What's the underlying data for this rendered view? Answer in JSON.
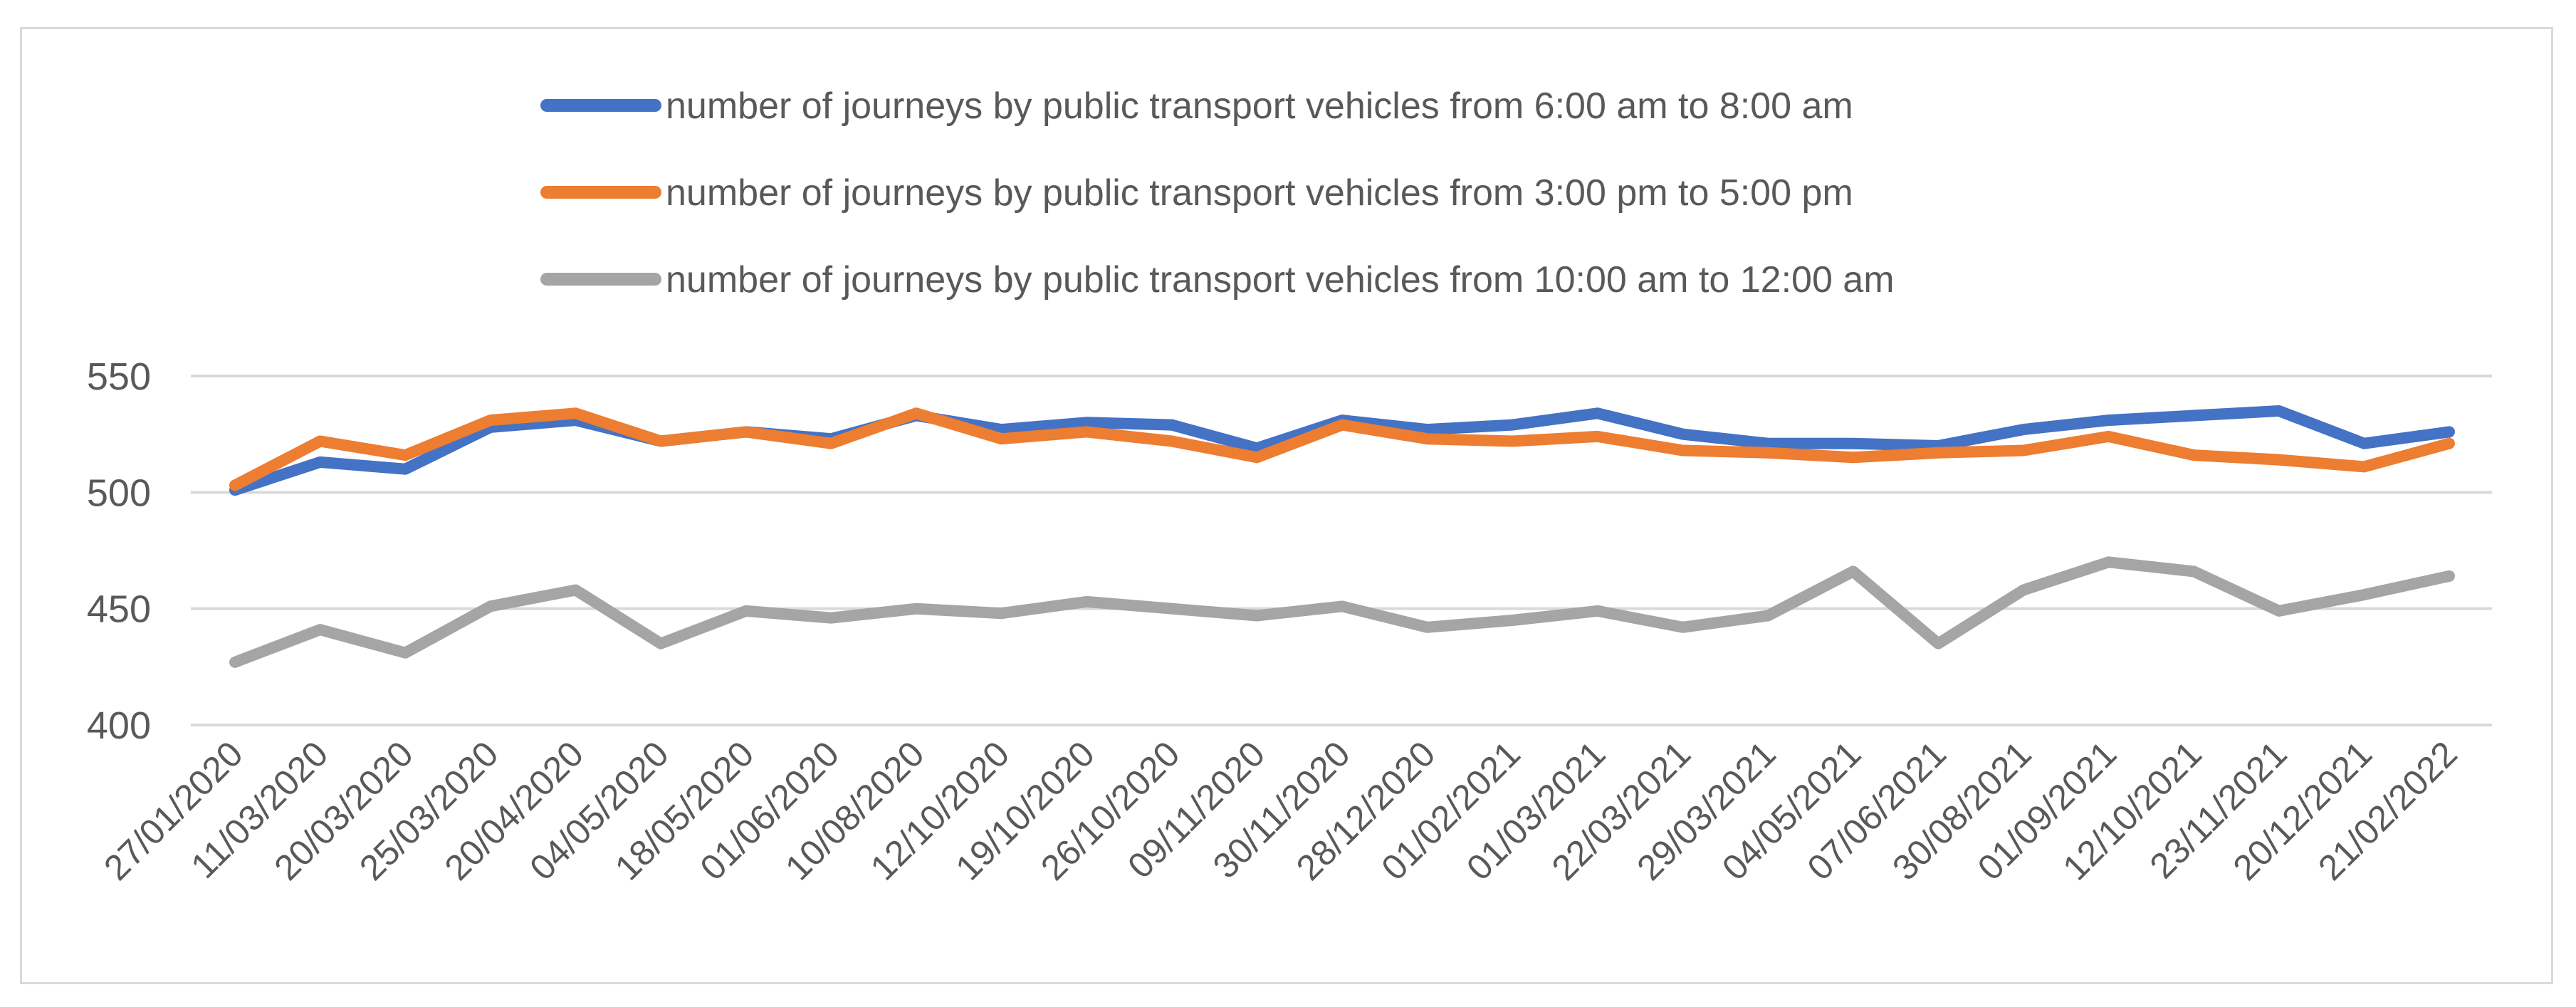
{
  "chart_data": {
    "type": "line",
    "title": "",
    "xlabel": "",
    "ylabel": "",
    "ylim": [
      400,
      550
    ],
    "yticks": [
      400,
      450,
      500,
      550
    ],
    "grid": true,
    "legend_position": "top",
    "categories": [
      "27/01/2020",
      "11/03/2020",
      "20/03/2020",
      "25/03/2020",
      "20/04/2020",
      "04/05/2020",
      "18/05/2020",
      "01/06/2020",
      "10/08/2020",
      "12/10/2020",
      "19/10/2020",
      "26/10/2020",
      "09/11/2020",
      "30/11/2020",
      "28/12/2020",
      "01/02/2021",
      "01/03/2021",
      "22/03/2021",
      "29/03/2021",
      "04/05/2021",
      "07/06/2021",
      "30/08/2021",
      "01/09/2021",
      "12/10/2021",
      "23/11/2021",
      "20/12/2021",
      "21/02/2022"
    ],
    "series": [
      {
        "name": "number of journeys by public transport vehicles from 6:00 am to 8:00 am",
        "color": "#4472c4",
        "values": [
          501,
          513,
          510,
          528,
          531,
          522,
          526,
          523,
          533,
          527,
          530,
          529,
          519,
          531,
          527,
          529,
          534,
          525,
          521,
          521,
          520,
          527,
          531,
          533,
          535,
          521,
          526
        ]
      },
      {
        "name": "number of journeys by public transport vehicles from 3:00 pm to 5:00 pm",
        "color": "#ed7d31",
        "values": [
          503,
          522,
          516,
          531,
          534,
          522,
          526,
          521,
          534,
          523,
          526,
          522,
          515,
          529,
          523,
          522,
          524,
          518,
          517,
          515,
          517,
          518,
          524,
          516,
          514,
          511,
          521
        ]
      },
      {
        "name": "number of journeys by public transport vehicles from 10:00 am to 12:00 am",
        "color": "#a5a5a5",
        "values": [
          427,
          441,
          431,
          451,
          458,
          435,
          449,
          446,
          450,
          448,
          453,
          450,
          447,
          451,
          442,
          445,
          449,
          442,
          447,
          466,
          435,
          458,
          470,
          466,
          449,
          456,
          464
        ]
      }
    ]
  }
}
